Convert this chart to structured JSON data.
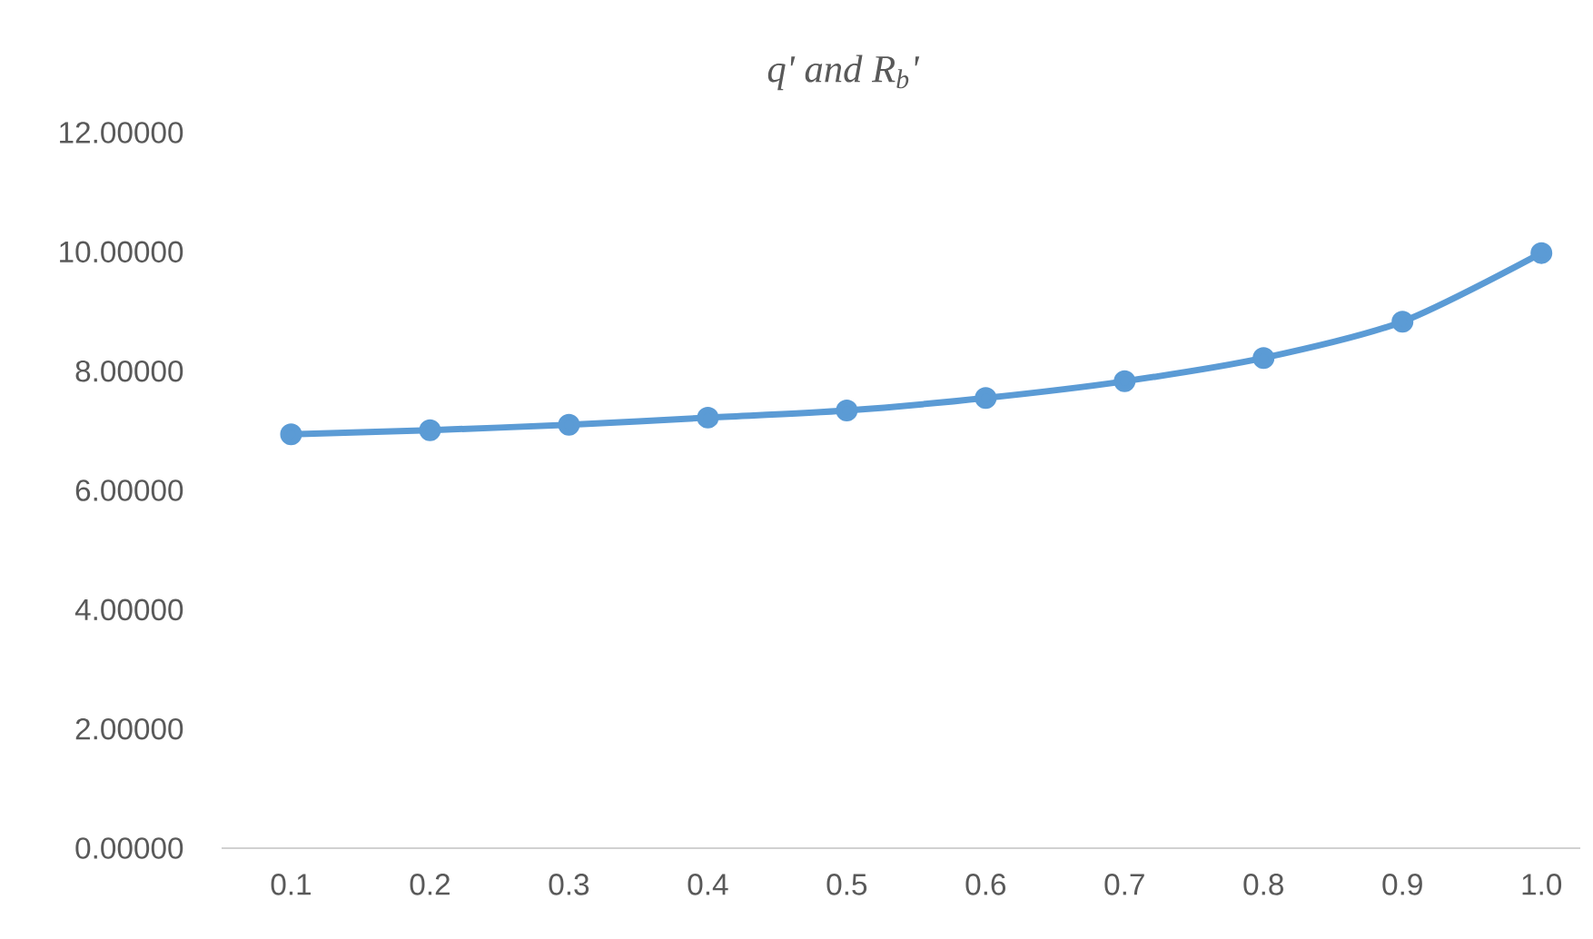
{
  "chart_data": {
    "type": "line",
    "title": "q' and R$_{b}$'",
    "categories": [
      "0.1",
      "0.2",
      "0.3",
      "0.4",
      "0.5",
      "0.6",
      "0.7",
      "0.8",
      "0.9",
      "1.0"
    ],
    "series": [
      {
        "color": "#5b9bd5",
        "values": [
          6.94,
          7.01,
          7.1,
          7.22,
          7.34,
          7.55,
          7.83,
          8.22,
          8.83,
          9.98
        ]
      }
    ],
    "ylim": [
      0,
      12
    ],
    "yticks": [
      {
        "value": 0,
        "label": "0.00000"
      },
      {
        "value": 2,
        "label": "2.00000"
      },
      {
        "value": 4,
        "label": "4.00000"
      },
      {
        "value": 6,
        "label": "6.00000"
      },
      {
        "value": 8,
        "label": "8.00000"
      },
      {
        "value": 10,
        "label": "10.00000"
      },
      {
        "value": 12,
        "label": "12.00000"
      }
    ],
    "marker": "circle",
    "line_style": "solid"
  }
}
